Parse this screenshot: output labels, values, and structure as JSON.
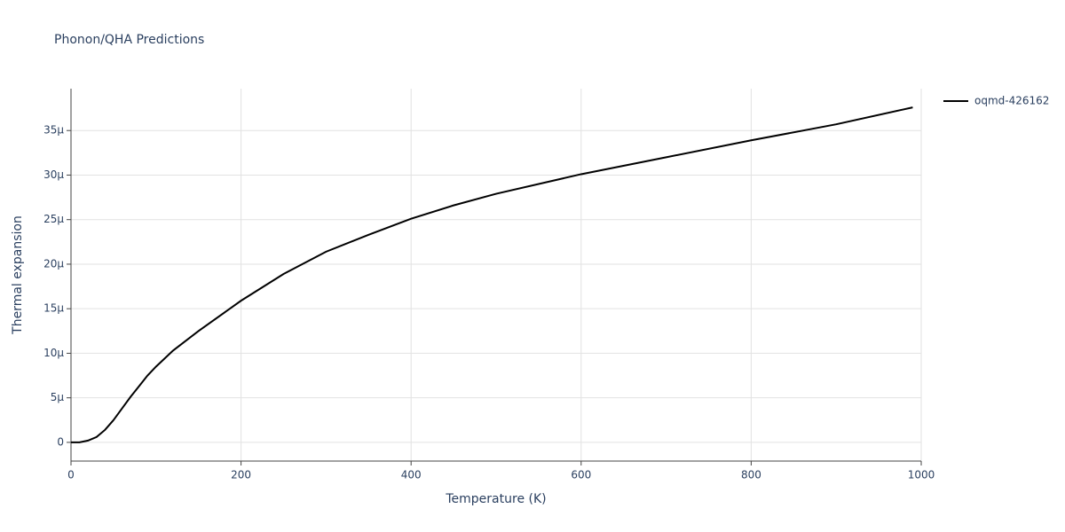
{
  "chart_data": {
    "type": "line",
    "title": "Phonon/QHA Predictions",
    "x_label": "Temperature (K)",
    "y_label": "Thermal expansion",
    "x": [
      0,
      10,
      20,
      30,
      40,
      50,
      60,
      70,
      80,
      90,
      100,
      120,
      150,
      200,
      250,
      300,
      350,
      400,
      450,
      500,
      600,
      700,
      800,
      900,
      990
    ],
    "series": [
      {
        "name": "oqmd-426162",
        "color": "#000000",
        "values": [
          0,
          0,
          2e-07,
          6e-07,
          1.4e-06,
          2.5e-06,
          3.8e-06,
          5.1e-06,
          6.3e-06,
          7.5e-06,
          8.5e-06,
          1.03e-05,
          1.25e-05,
          1.59e-05,
          1.89e-05,
          2.14e-05,
          2.33e-05,
          2.51e-05,
          2.66e-05,
          2.79e-05,
          3.01e-05,
          3.2e-05,
          3.39e-05,
          3.57e-05,
          3.76e-05
        ]
      }
    ],
    "xlim": [
      0,
      1000
    ],
    "xticks": [
      0,
      200,
      400,
      600,
      800,
      1000
    ],
    "ylim": [
      -2.1e-06,
      3.97e-05
    ],
    "yticks": [
      0,
      {
        "value": 5e-06,
        "label": "5μ"
      },
      {
        "value": 1e-05,
        "label": "10μ"
      },
      {
        "value": 1.5e-05,
        "label": "15μ"
      },
      {
        "value": 2e-05,
        "label": "20μ"
      },
      {
        "value": 2.5e-05,
        "label": "25μ"
      },
      {
        "value": 3e-05,
        "label": "30μ"
      },
      {
        "value": 3.5e-05,
        "label": "35μ"
      }
    ],
    "grid": true,
    "legend": "right"
  }
}
